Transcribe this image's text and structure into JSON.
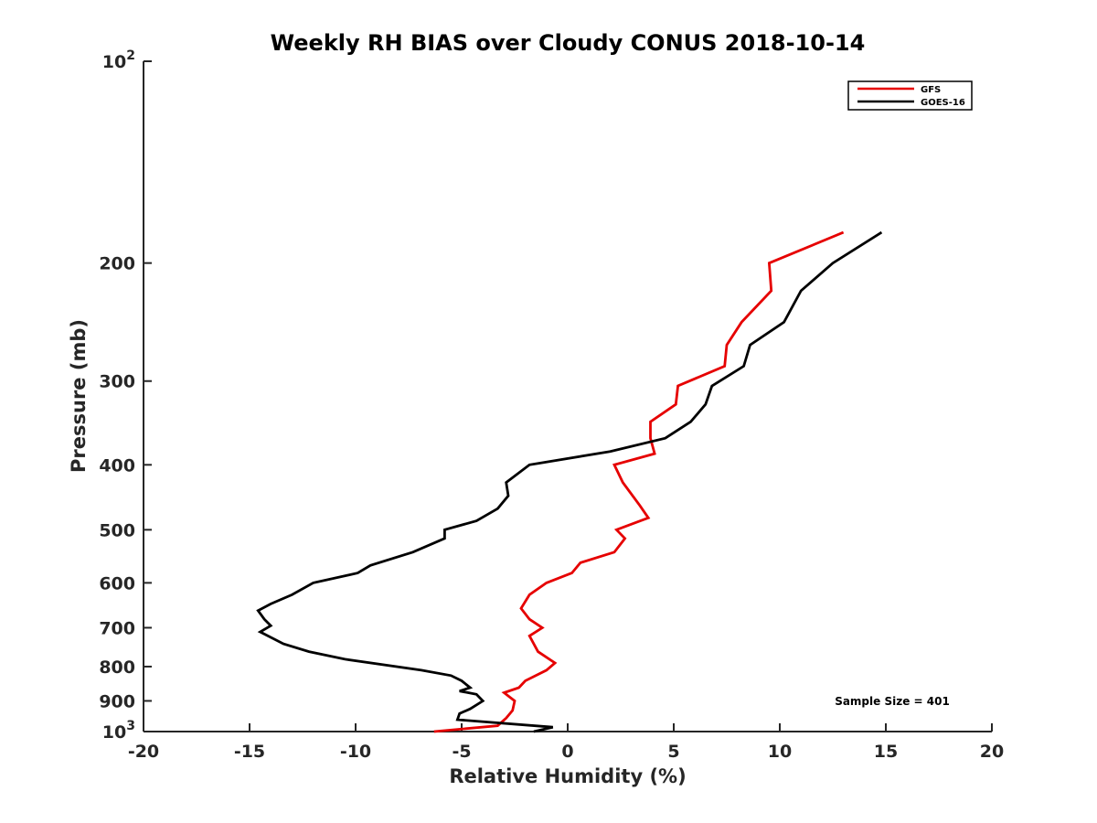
{
  "chart_data": {
    "type": "line",
    "title": "Weekly RH BIAS over Cloudy CONUS 2018-10-14",
    "xlabel": "Relative Humidity (%)",
    "ylabel": "Pressure (mb)",
    "xlim": [
      -20,
      20
    ],
    "ylim": [
      100,
      1000
    ],
    "y_scale": "log",
    "y_reversed": true,
    "grid": false,
    "legend_position": "top-right",
    "x_ticks": [
      -20,
      -15,
      -10,
      -5,
      0,
      5,
      10,
      15,
      20
    ],
    "x_tick_labels": [
      "-20",
      "-15",
      "-10",
      "-5",
      "0",
      "5",
      "10",
      "15",
      "20"
    ],
    "y_ticks": [
      100,
      200,
      300,
      400,
      500,
      600,
      700,
      800,
      900,
      1000
    ],
    "y_tick_labels": [
      {
        "base": "10",
        "exp": "2"
      },
      {
        "base": "200",
        "exp": ""
      },
      {
        "base": "300",
        "exp": ""
      },
      {
        "base": "400",
        "exp": ""
      },
      {
        "base": "500",
        "exp": ""
      },
      {
        "base": "600",
        "exp": ""
      },
      {
        "base": "700",
        "exp": ""
      },
      {
        "base": "800",
        "exp": ""
      },
      {
        "base": "900",
        "exp": ""
      },
      {
        "base": "10",
        "exp": "3"
      }
    ],
    "series": [
      {
        "name": "GFS",
        "color": "#e60000",
        "points": [
          {
            "x": 13.0,
            "y": 180
          },
          {
            "x": 9.5,
            "y": 200
          },
          {
            "x": 9.6,
            "y": 220
          },
          {
            "x": 8.2,
            "y": 245
          },
          {
            "x": 7.5,
            "y": 265
          },
          {
            "x": 7.4,
            "y": 285
          },
          {
            "x": 5.2,
            "y": 305
          },
          {
            "x": 5.1,
            "y": 325
          },
          {
            "x": 3.9,
            "y": 345
          },
          {
            "x": 3.9,
            "y": 365
          },
          {
            "x": 4.1,
            "y": 385
          },
          {
            "x": 2.2,
            "y": 400
          },
          {
            "x": 2.6,
            "y": 425
          },
          {
            "x": 3.4,
            "y": 460
          },
          {
            "x": 3.8,
            "y": 480
          },
          {
            "x": 2.3,
            "y": 500
          },
          {
            "x": 2.7,
            "y": 515
          },
          {
            "x": 2.2,
            "y": 540
          },
          {
            "x": 0.6,
            "y": 560
          },
          {
            "x": 0.2,
            "y": 580
          },
          {
            "x": -1.0,
            "y": 600
          },
          {
            "x": -1.8,
            "y": 625
          },
          {
            "x": -2.2,
            "y": 655
          },
          {
            "x": -1.8,
            "y": 680
          },
          {
            "x": -1.2,
            "y": 700
          },
          {
            "x": -1.8,
            "y": 720
          },
          {
            "x": -1.4,
            "y": 760
          },
          {
            "x": -0.6,
            "y": 790
          },
          {
            "x": -1.0,
            "y": 810
          },
          {
            "x": -2.0,
            "y": 840
          },
          {
            "x": -2.3,
            "y": 860
          },
          {
            "x": -3.0,
            "y": 875
          },
          {
            "x": -2.5,
            "y": 900
          },
          {
            "x": -2.6,
            "y": 930
          },
          {
            "x": -2.9,
            "y": 955
          },
          {
            "x": -3.3,
            "y": 980
          },
          {
            "x": -6.3,
            "y": 1000
          }
        ]
      },
      {
        "name": "GOES-16",
        "color": "#000000",
        "points": [
          {
            "x": 14.8,
            "y": 180
          },
          {
            "x": 12.5,
            "y": 200
          },
          {
            "x": 11.0,
            "y": 220
          },
          {
            "x": 10.2,
            "y": 245
          },
          {
            "x": 8.6,
            "y": 265
          },
          {
            "x": 8.3,
            "y": 285
          },
          {
            "x": 6.8,
            "y": 305
          },
          {
            "x": 6.5,
            "y": 325
          },
          {
            "x": 5.8,
            "y": 345
          },
          {
            "x": 4.6,
            "y": 365
          },
          {
            "x": 2.0,
            "y": 382
          },
          {
            "x": -1.8,
            "y": 400
          },
          {
            "x": -2.9,
            "y": 425
          },
          {
            "x": -2.8,
            "y": 445
          },
          {
            "x": -3.3,
            "y": 465
          },
          {
            "x": -4.3,
            "y": 485
          },
          {
            "x": -5.8,
            "y": 500
          },
          {
            "x": -5.8,
            "y": 515
          },
          {
            "x": -7.3,
            "y": 540
          },
          {
            "x": -9.3,
            "y": 565
          },
          {
            "x": -9.9,
            "y": 580
          },
          {
            "x": -12.0,
            "y": 600
          },
          {
            "x": -13.0,
            "y": 625
          },
          {
            "x": -14.0,
            "y": 645
          },
          {
            "x": -14.6,
            "y": 660
          },
          {
            "x": -14.3,
            "y": 680
          },
          {
            "x": -14.0,
            "y": 695
          },
          {
            "x": -14.5,
            "y": 710
          },
          {
            "x": -13.4,
            "y": 740
          },
          {
            "x": -12.2,
            "y": 760
          },
          {
            "x": -10.5,
            "y": 780
          },
          {
            "x": -6.9,
            "y": 810
          },
          {
            "x": -5.5,
            "y": 825
          },
          {
            "x": -5.0,
            "y": 840
          },
          {
            "x": -4.6,
            "y": 860
          },
          {
            "x": -5.1,
            "y": 870
          },
          {
            "x": -4.3,
            "y": 880
          },
          {
            "x": -4.0,
            "y": 900
          },
          {
            "x": -4.6,
            "y": 925
          },
          {
            "x": -5.1,
            "y": 940
          },
          {
            "x": -5.2,
            "y": 960
          },
          {
            "x": -0.7,
            "y": 985
          },
          {
            "x": -1.6,
            "y": 1000
          }
        ]
      }
    ],
    "annotations": [
      {
        "text": "Sample Size = 401",
        "position": "bottom-right"
      }
    ]
  }
}
